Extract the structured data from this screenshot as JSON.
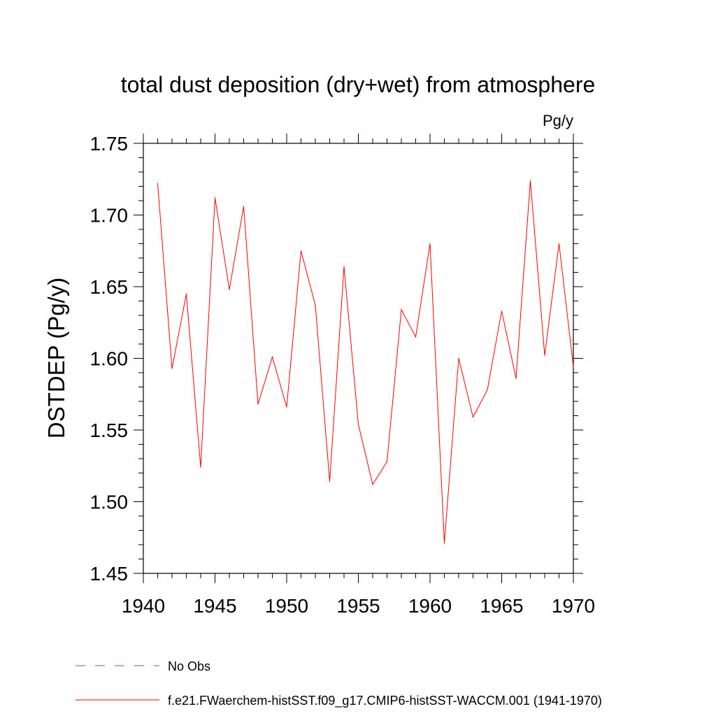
{
  "chart_data": {
    "type": "line",
    "title": "total dust deposition (dry+wet) from atmosphere",
    "units": "Pg/y",
    "xlabel": "",
    "ylabel": "DSTDEP  (Pg/y)",
    "xlim": [
      1940,
      1970
    ],
    "ylim": [
      1.45,
      1.75
    ],
    "xticks": [
      "1940",
      "1945",
      "1950",
      "1955",
      "1960",
      "1965",
      "1970"
    ],
    "yticks": [
      "1.45",
      "1.50",
      "1.55",
      "1.60",
      "1.65",
      "1.70",
      "1.75"
    ],
    "grid": false,
    "legend_position": "bottom",
    "series": [
      {
        "name": "f.e21.FWaerchem-histSST.f09_g17.CMIP6-histSST-WACCM.001 (1941-1970)",
        "color": "#ff0000",
        "style": "solid",
        "x": [
          1941,
          1942,
          1943,
          1944,
          1945,
          1946,
          1947,
          1948,
          1949,
          1950,
          1951,
          1952,
          1953,
          1954,
          1955,
          1956,
          1957,
          1958,
          1959,
          1960,
          1961,
          1962,
          1963,
          1964,
          1965,
          1966,
          1967,
          1968,
          1969,
          1970
        ],
        "values": [
          1.722,
          1.593,
          1.645,
          1.524,
          1.712,
          1.648,
          1.706,
          1.568,
          1.601,
          1.566,
          1.675,
          1.637,
          1.514,
          1.664,
          1.554,
          1.512,
          1.528,
          1.634,
          1.615,
          1.68,
          1.471,
          1.6,
          1.559,
          1.578,
          1.633,
          1.586,
          1.724,
          1.602,
          1.68,
          1.594
        ]
      }
    ],
    "legend": [
      {
        "label": "No Obs",
        "color": "#6a5acd",
        "style": "dashed"
      },
      {
        "label": "f.e21.FWaerchem-histSST.f09_g17.CMIP6-histSST-WACCM.001 (1941-1970)",
        "color": "#ff0000",
        "style": "solid"
      }
    ]
  }
}
